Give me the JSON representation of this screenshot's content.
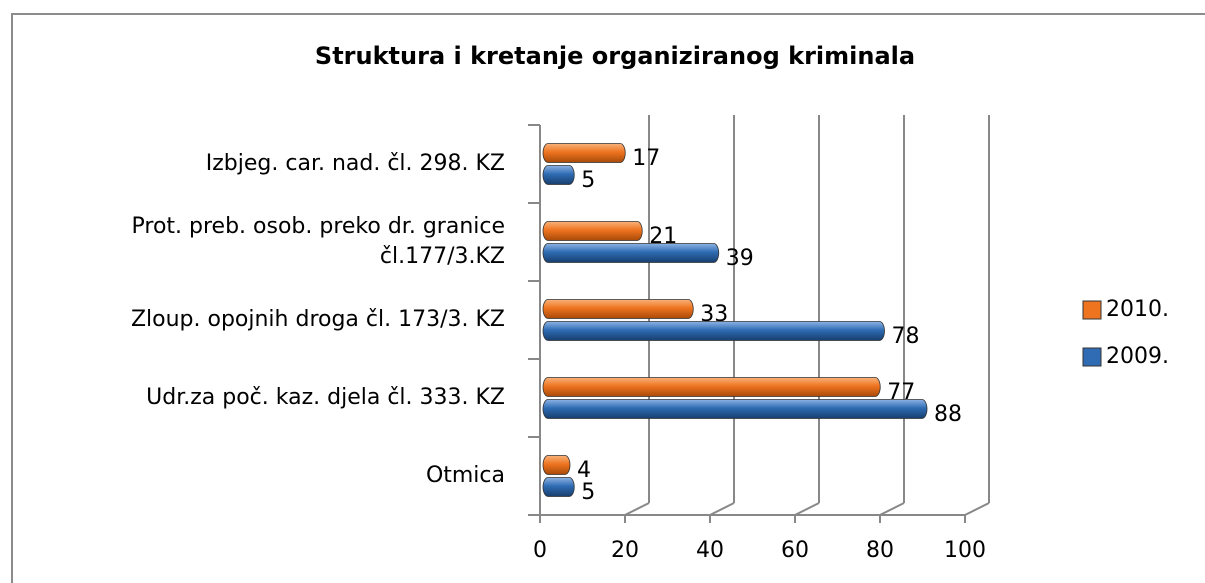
{
  "chart_data": {
    "type": "bar",
    "orientation": "horizontal",
    "title": "Struktura i kretanje organiziranog kriminala",
    "categories": [
      "Izbjeg. car. nad. čl. 298. KZ",
      "Prot. preb. osob. preko dr. granice\nčl.177/3.KZ",
      "Zloup. opojnih droga čl. 173/3. KZ",
      "Udr.za poč. kaz. djela čl. 333. KZ",
      "Otmica"
    ],
    "series": [
      {
        "name": "2010.",
        "color": "#ee7420",
        "values": [
          17,
          21,
          33,
          77,
          4
        ]
      },
      {
        "name": "2009.",
        "color": "#2f6cb3",
        "values": [
          5,
          39,
          78,
          88,
          5
        ]
      }
    ],
    "xlim": [
      0,
      100
    ],
    "xticks": [
      0,
      20,
      40,
      60,
      80,
      100
    ],
    "grid": true,
    "legend": "right"
  }
}
